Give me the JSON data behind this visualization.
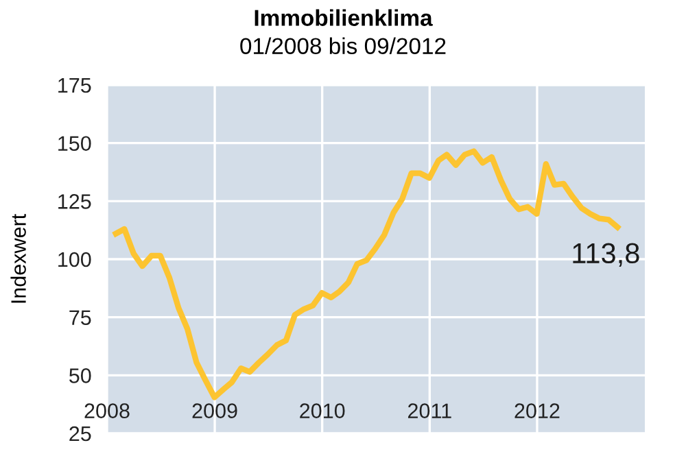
{
  "chart_data": {
    "type": "line",
    "title": "Immobilienklima",
    "subtitle": "01/2008 bis 09/2012",
    "ylabel": "Indexwert",
    "x": [
      "2008-01-31",
      "2008-02-29",
      "2008-03-31",
      "2008-04-30",
      "2008-05-31",
      "2008-06-30",
      "2008-07-31",
      "2008-08-31",
      "2008-09-30",
      "2008-10-31",
      "2008-11-30",
      "2008-12-31",
      "2009-01-31",
      "2009-02-28",
      "2009-03-31",
      "2009-04-30",
      "2009-05-31",
      "2009-06-30",
      "2009-07-31",
      "2009-08-31",
      "2009-09-30",
      "2009-10-31",
      "2009-11-30",
      "2009-12-31",
      "2010-01-31",
      "2010-02-28",
      "2010-03-31",
      "2010-04-30",
      "2010-05-31",
      "2010-06-30",
      "2010-07-31",
      "2010-08-31",
      "2010-09-30",
      "2010-10-31",
      "2010-11-30",
      "2010-12-31",
      "2011-01-31",
      "2011-02-28",
      "2011-03-31",
      "2011-04-30",
      "2011-05-31",
      "2011-06-30",
      "2011-07-31",
      "2011-08-31",
      "2011-09-30",
      "2011-10-31",
      "2011-11-30",
      "2011-12-31",
      "2012-01-31",
      "2012-02-29",
      "2012-03-31",
      "2012-04-30",
      "2012-05-31",
      "2012-06-30",
      "2012-07-31",
      "2012-08-31",
      "2012-09-30"
    ],
    "series": [
      {
        "color": "#fcc431",
        "values": [
          111,
          113,
          102.5,
          97,
          101.5,
          101.5,
          92,
          79,
          70,
          55.5,
          48,
          40.5,
          44,
          47,
          53,
          51.5,
          55.5,
          59,
          63,
          65,
          76,
          78.5,
          80,
          85.5,
          83.5,
          86,
          90,
          98,
          99.5,
          104.5,
          110.5,
          120,
          126,
          137,
          137,
          135,
          142.5,
          145,
          140.5,
          145,
          146.5,
          141.5,
          144,
          134,
          126,
          121.5,
          122.5,
          119.5,
          141,
          132,
          132.5,
          127,
          122,
          119.5,
          117.5,
          117,
          113.8
        ],
        "value_labels": [
          null,
          null,
          null,
          null,
          null,
          null,
          null,
          null,
          null,
          null,
          null,
          null,
          null,
          null,
          null,
          null,
          null,
          null,
          null,
          null,
          null,
          null,
          null,
          null,
          null,
          null,
          null,
          null,
          null,
          null,
          null,
          null,
          null,
          null,
          null,
          null,
          null,
          null,
          null,
          null,
          null,
          null,
          null,
          null,
          null,
          null,
          null,
          null,
          null,
          null,
          null,
          null,
          null,
          null,
          null,
          null,
          "113,8"
        ]
      }
    ],
    "xlim": [
      "2008-01-01",
      "2013-01-01"
    ],
    "xticks": [
      {
        "value": "2008-01-01",
        "label": "2008"
      },
      {
        "value": "2009-01-01",
        "label": "2009"
      },
      {
        "value": "2010-01-01",
        "label": "2010"
      },
      {
        "value": "2011-01-01",
        "label": "2011"
      },
      {
        "value": "2012-01-01",
        "label": "2012"
      }
    ],
    "ylim": [
      25,
      175
    ],
    "yticks": [
      25,
      50,
      75,
      100,
      125,
      150,
      175
    ],
    "grid": true,
    "marker": "none",
    "line_style": "solid",
    "legend": false
  }
}
